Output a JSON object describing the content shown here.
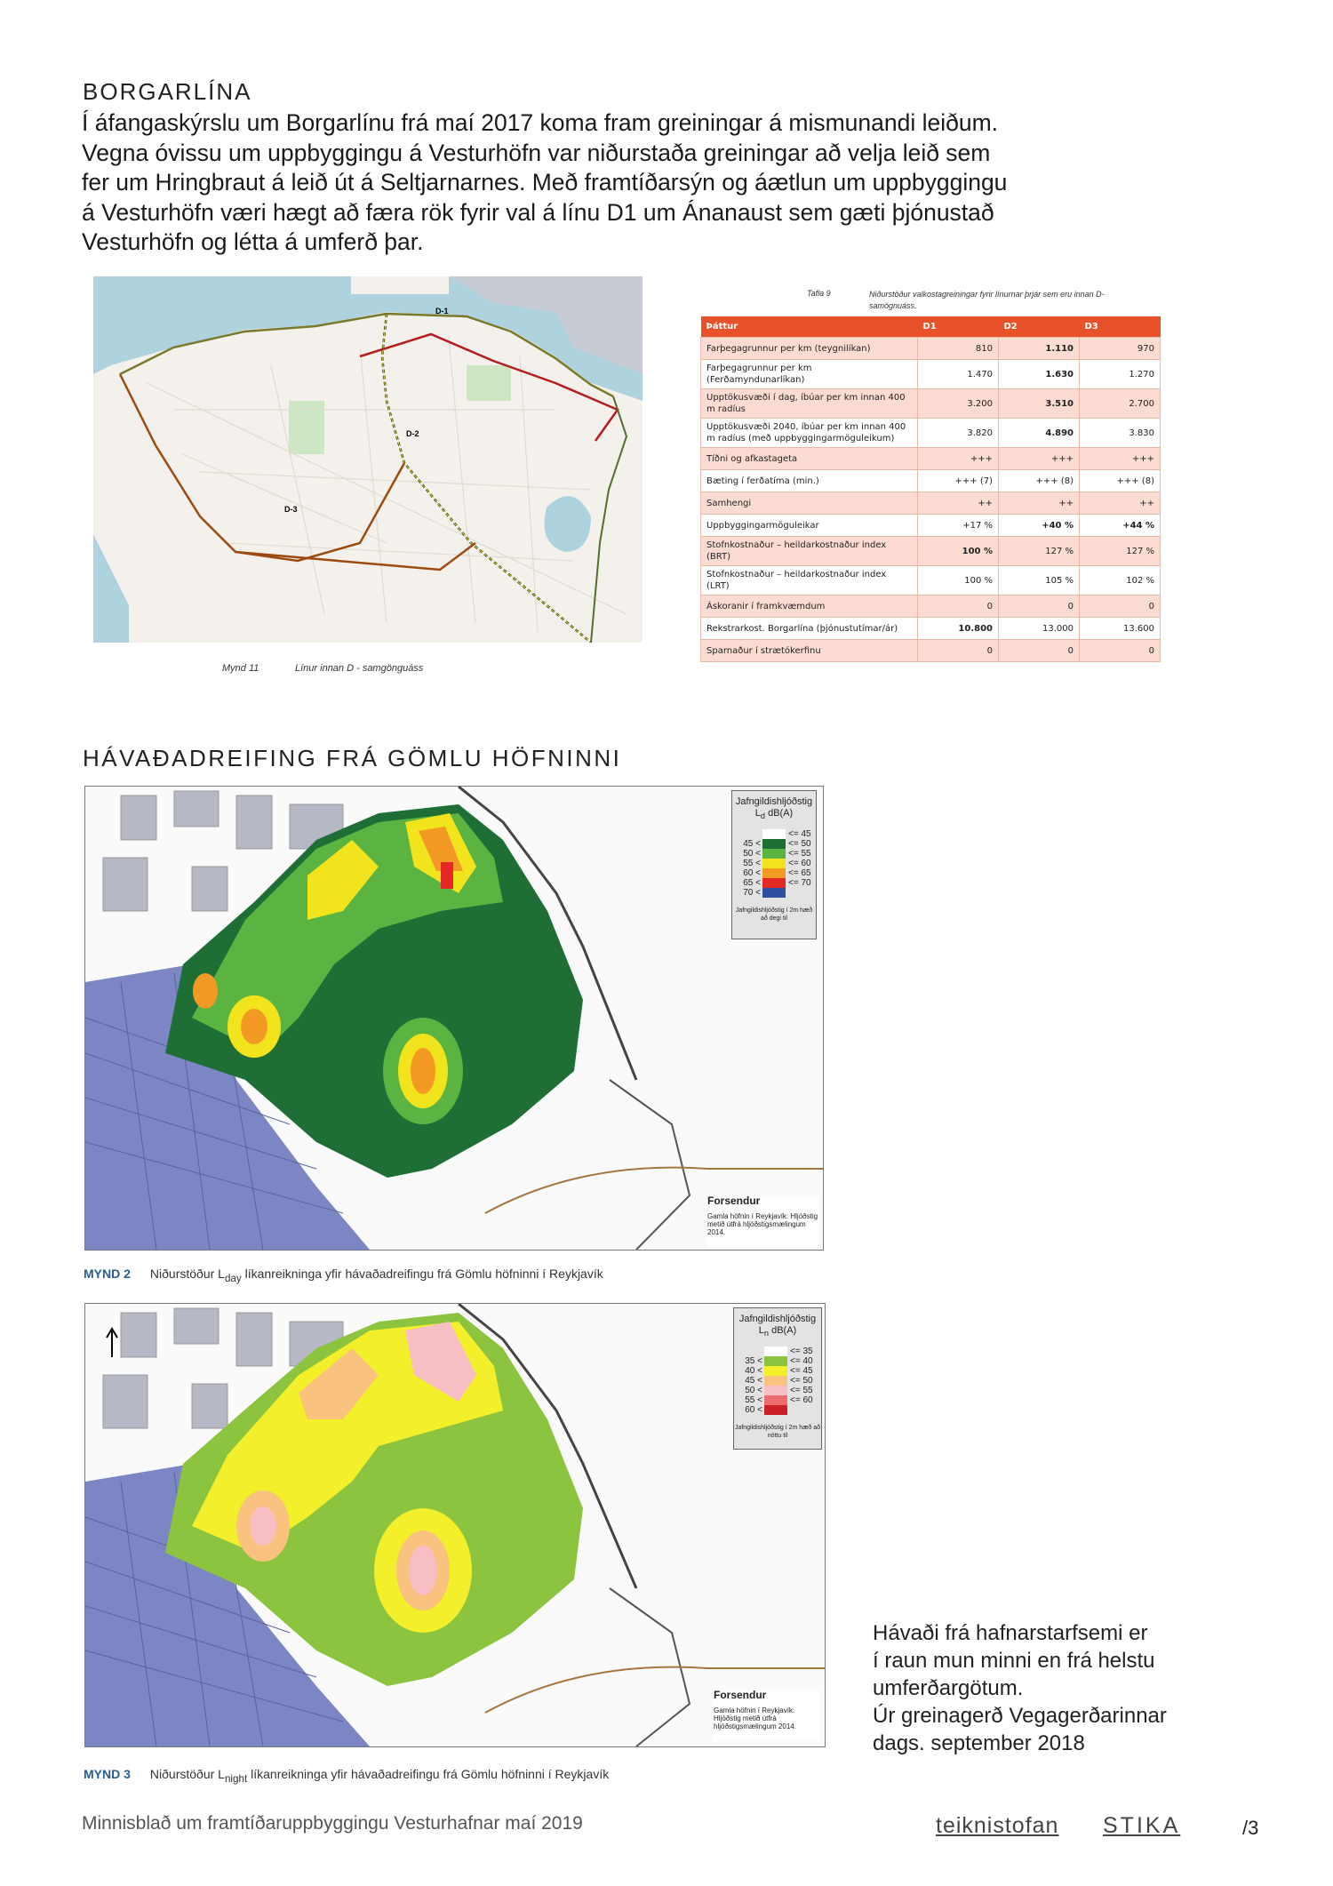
{
  "section1": {
    "heading": "BORGARLÍNA",
    "paragraph_lines": [
      "Í áfangaskýrslu um Borgarlínu frá maí 2017 koma fram greiningar á mismunandi leiðum.",
      "Vegna óvissu um uppbyggingu á Vesturhöfn var niðurstaða greiningar að velja leið sem",
      "fer um Hringbraut á leið út á Seltjarnarnes. Með framtíðarsýn og áætlun um uppbyggingu",
      "á Vesturhöfn væri hægt að færa rök fyrir val á línu D1 um Ánanaust sem gæti þjónustað",
      "Vesturhöfn og létta á umferð þar."
    ],
    "map": {
      "line_labels": [
        "D-1",
        "D-2",
        "D-3"
      ],
      "caption_number": "Mynd 11",
      "caption_text": "Línur innan D - samgönguáss"
    },
    "table": {
      "caption_number": "Tafla 9",
      "caption_text": "Niðurstöður valkostagreiningar fyrir línurnar þrjár sem eru innan D-samögnuáss.",
      "headers": [
        "Þáttur",
        "D1",
        "D2",
        "D3"
      ],
      "rows": [
        {
          "label": "Farþegagrunnur per km (teygnilíkan)",
          "d1": "810",
          "d2": "1.110",
          "d3": "970",
          "bold": [
            false,
            true,
            false
          ]
        },
        {
          "label": "Farþegagrunnur per km (Ferðamyndunarlíkan)",
          "d1": "1.470",
          "d2": "1.630",
          "d3": "1.270",
          "bold": [
            false,
            true,
            false
          ]
        },
        {
          "label": "Upptökusvæði í dag, íbúar per km innan 400 m radíus",
          "d1": "3.200",
          "d2": "3.510",
          "d3": "2.700",
          "bold": [
            false,
            true,
            false
          ]
        },
        {
          "label": "Upptökusvæði 2040, íbúar per km innan 400 m radíus (með uppbyggingarmöguleikum)",
          "d1": "3.820",
          "d2": "4.890",
          "d3": "3.830",
          "bold": [
            false,
            true,
            false
          ]
        },
        {
          "label": "Tíðni og afkastageta",
          "d1": "+++",
          "d2": "+++",
          "d3": "+++",
          "bold": [
            false,
            false,
            false
          ]
        },
        {
          "label": "Bæting í ferðatíma (min.)",
          "d1": "+++ (7)",
          "d2": "+++ (8)",
          "d3": "+++ (8)",
          "bold": [
            false,
            false,
            false
          ]
        },
        {
          "label": "Samhengi",
          "d1": "++",
          "d2": "++",
          "d3": "++",
          "bold": [
            false,
            false,
            false
          ]
        },
        {
          "label": "Uppbyggingarmöguleikar",
          "d1": "+17 %",
          "d2": "+40 %",
          "d3": "+44 %",
          "bold": [
            false,
            true,
            true
          ]
        },
        {
          "label": "Stofnkostnaður – heildarkostnaður index (BRT)",
          "d1": "100 %",
          "d2": "127 %",
          "d3": "127 %",
          "bold": [
            true,
            false,
            false
          ]
        },
        {
          "label": "Stofnkostnaður – heildarkostnaður index (LRT)",
          "d1": "100 %",
          "d2": "105 %",
          "d3": "102 %",
          "bold": [
            false,
            false,
            false
          ]
        },
        {
          "label": "Áskoranir í framkvæmdum",
          "d1": "0",
          "d2": "0",
          "d3": "0",
          "bold": [
            false,
            false,
            false
          ]
        },
        {
          "label": "Rekstrarkost. Borgarlína (þjónustutímar/ár)",
          "d1": "10.800",
          "d2": "13.000",
          "d3": "13.600",
          "bold": [
            true,
            false,
            false
          ]
        },
        {
          "label": "Sparnaður í strætókerfinu",
          "d1": "0",
          "d2": "0",
          "d3": "0",
          "bold": [
            false,
            false,
            false
          ]
        }
      ],
      "header_color": "#e8522a"
    }
  },
  "section2": {
    "heading": "HÁVAÐADREIFING FRÁ GÖMLU HÖFNINNI",
    "mynd2": {
      "legend_title": "Jafngildishljóðstig",
      "legend_unit_prefix": "L",
      "legend_unit_sub": "d",
      "legend_unit_suffix": " dB(A)",
      "legend_rows": [
        {
          "lower": "",
          "upper": "<= 45",
          "color": "#ffffff"
        },
        {
          "lower": "45 <",
          "upper": "<= 50",
          "color": "#1f6e36"
        },
        {
          "lower": "50 <",
          "upper": "<= 55",
          "color": "#5bb341"
        },
        {
          "lower": "55 <",
          "upper": "<= 60",
          "color": "#f1e31c"
        },
        {
          "lower": "60 <",
          "upper": "<= 65",
          "color": "#f39a25"
        },
        {
          "lower": "65 <",
          "upper": "<= 70",
          "color": "#e42824"
        },
        {
          "lower": "70 <",
          "upper": "",
          "color": "#2f4ea3"
        }
      ],
      "legend_note": "Jafngildishljóðstig í 2m hæð að degi til",
      "forsendur_title": "Forsendur",
      "forsendur_text": "Gamla höfnin í Reykjavík: Hljóðstig metið útfrá hljóðstigsmælingum 2014.",
      "caption_number": "MYND 2",
      "caption_pre": "Niðurstöður L",
      "caption_sub": "day",
      "caption_post": " líkanreikninga yfir hávaðadreifingu frá Gömlu höfninni í Reykjavík"
    },
    "mynd3": {
      "legend_title": "Jafngildishljóðstig",
      "legend_unit_prefix": "L",
      "legend_unit_sub": "n",
      "legend_unit_suffix": " dB(A)",
      "legend_rows": [
        {
          "lower": "",
          "upper": "<= 35",
          "color": "#ffffff"
        },
        {
          "lower": "35 <",
          "upper": "<= 40",
          "color": "#8cc43f"
        },
        {
          "lower": "40 <",
          "upper": "<= 45",
          "color": "#f3ef2a"
        },
        {
          "lower": "45 <",
          "upper": "<= 50",
          "color": "#f9c27f"
        },
        {
          "lower": "50 <",
          "upper": "<= 55",
          "color": "#f7bfc4"
        },
        {
          "lower": "55 <",
          "upper": "<= 60",
          "color": "#ec6d6f"
        },
        {
          "lower": "60 <",
          "upper": "",
          "color": "#cc2028"
        }
      ],
      "legend_note": "Jafngildishljóðstig í 2m hæð að nóttu til",
      "forsendur_title": "Forsendur",
      "forsendur_text": "Gamla höfnin í Reykjavík: Hljóðstig metið útfrá hljóðstigsmælingum 2014.",
      "caption_number": "MYND 3",
      "caption_pre": "Niðurstöður L",
      "caption_sub": "night",
      "caption_post": " líkanreikninga yfir hávaðadreifingu frá Gömlu höfninni í Reykjavík"
    },
    "side_text_lines": [
      "Hávaði frá hafnarstarfsemi er",
      "í raun mun minni en frá helstu",
      "umferðargötum.",
      "Úr greinagerð Vegagerðarinnar",
      "dags. september 2018"
    ]
  },
  "footer": {
    "title": "Minnisblað um framtíðaruppbyggingu Vesturhafnar maí 2019",
    "logo1": "teiknistofan",
    "logo2": "STIKA",
    "page": "/3"
  }
}
